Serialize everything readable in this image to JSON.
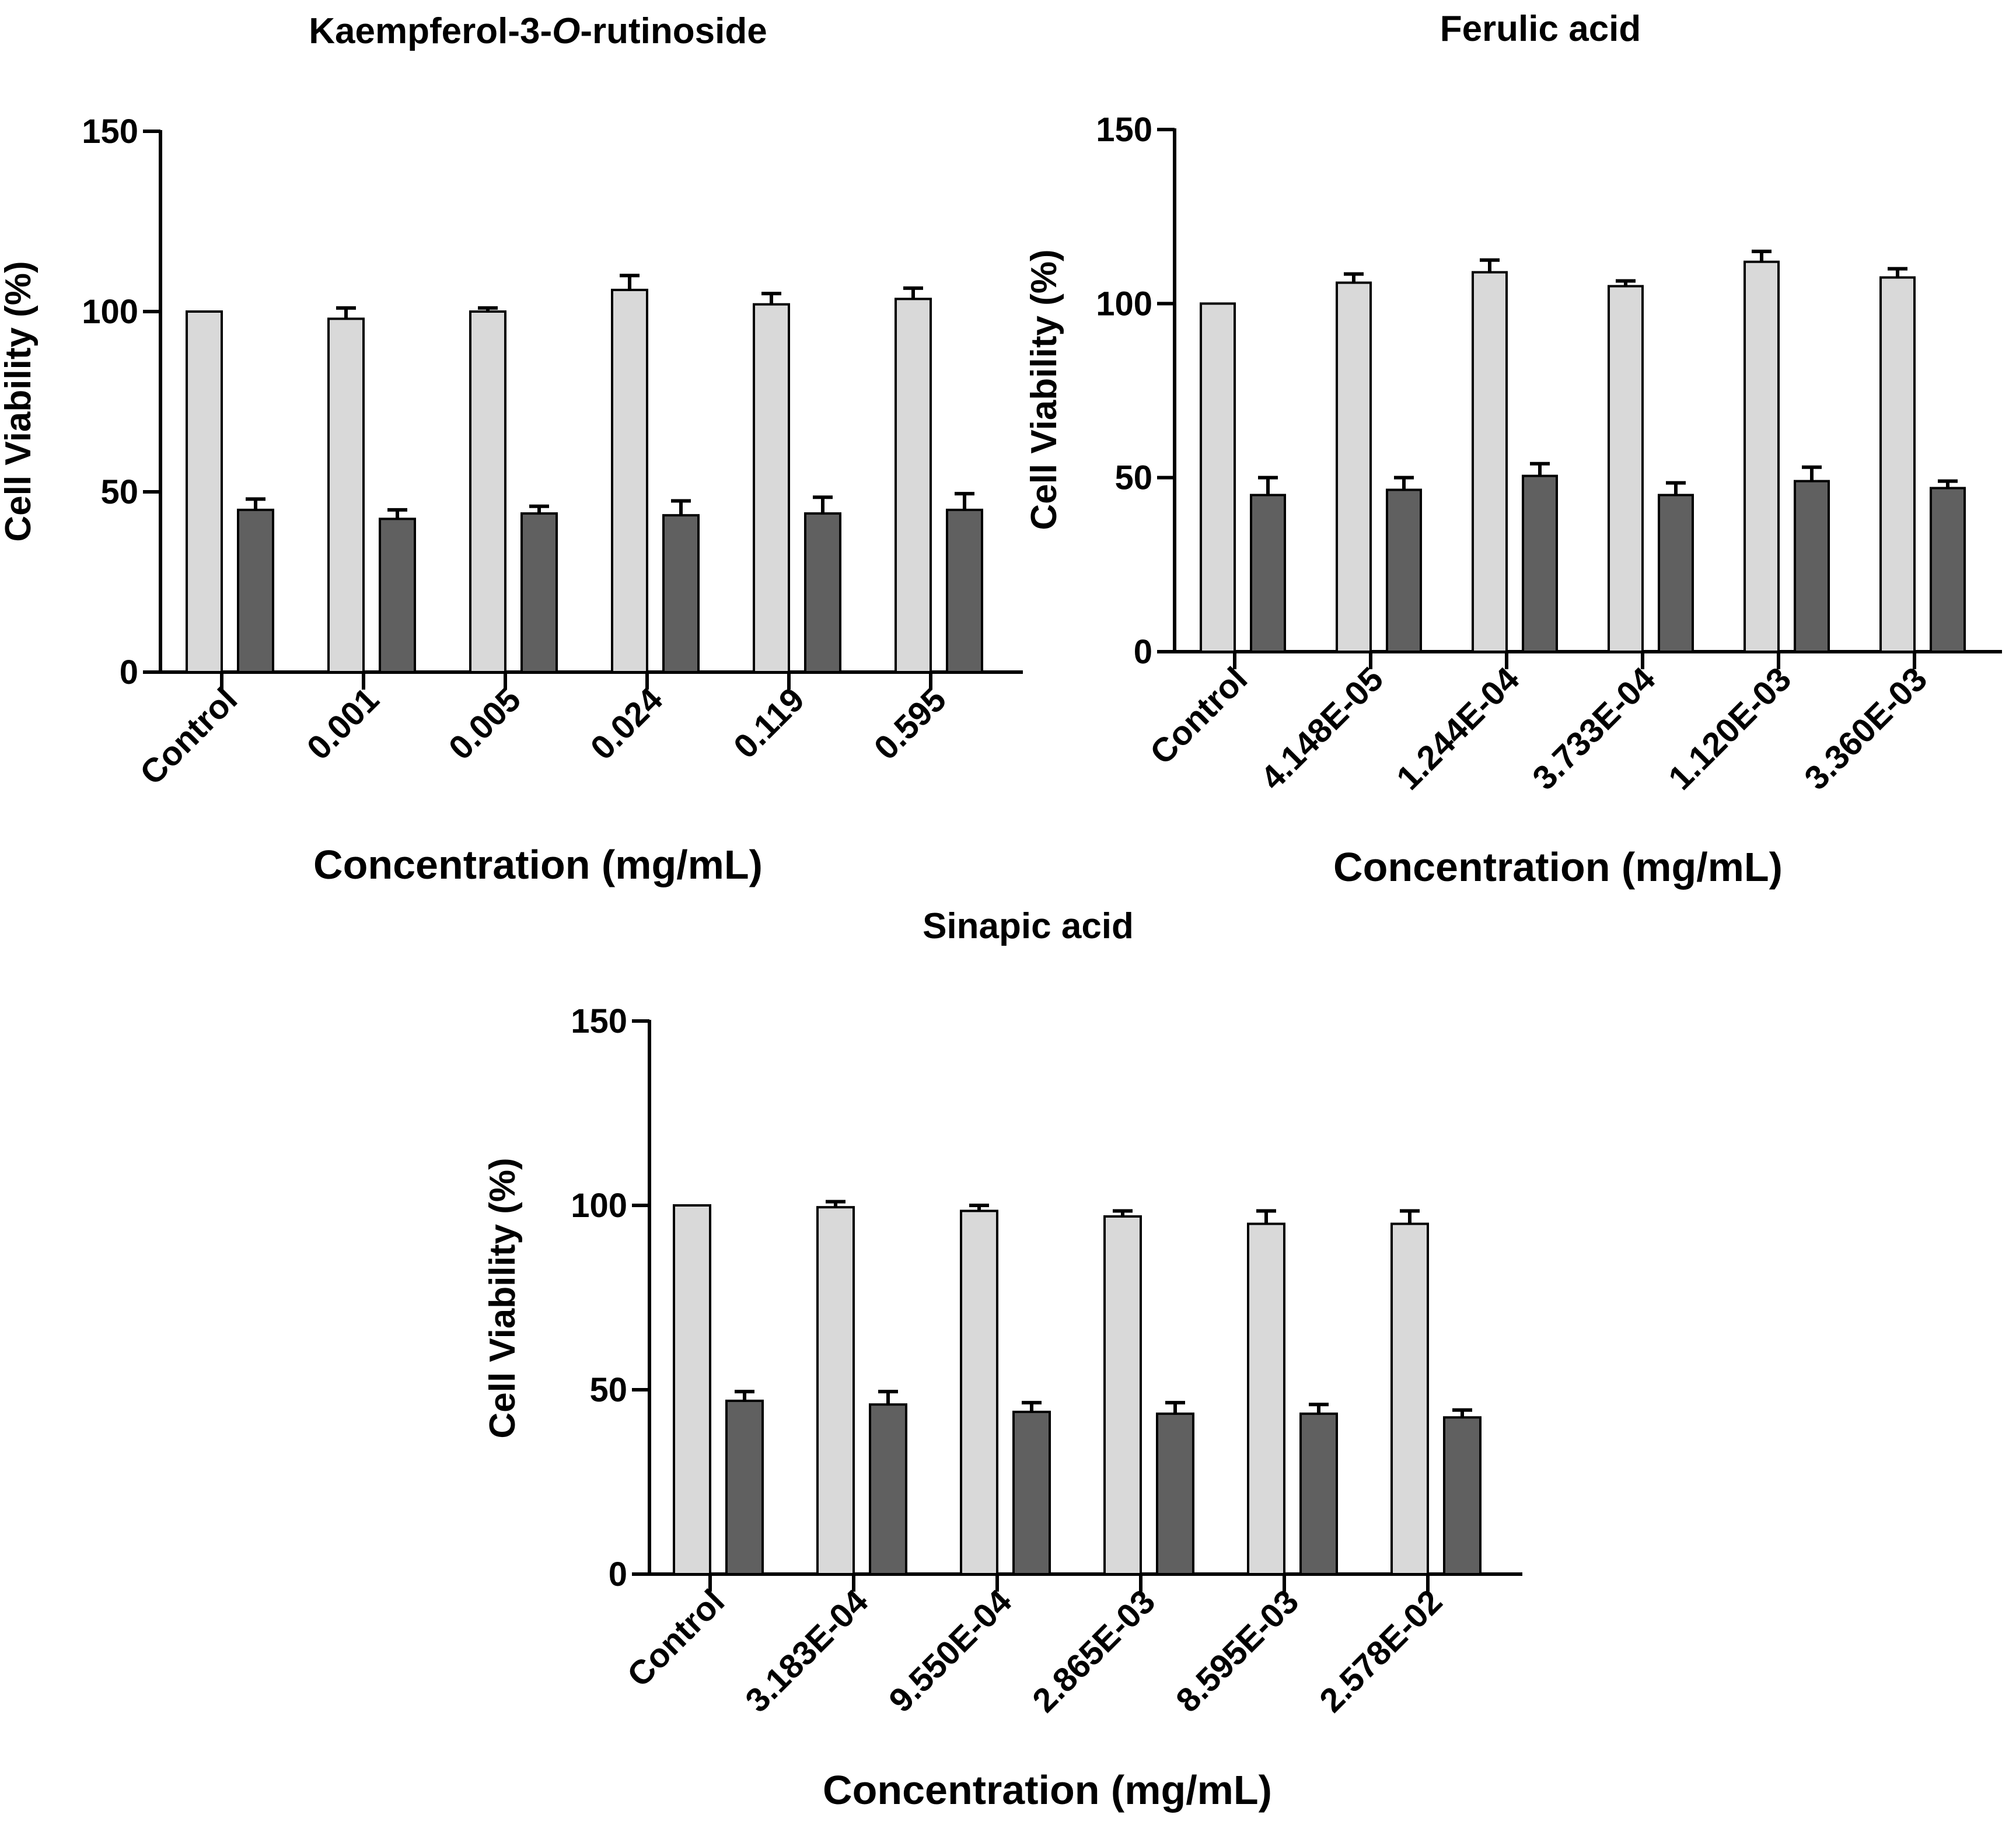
{
  "chart_data": [
    {
      "type": "bar",
      "title_parts": [
        "Kaempferol-3-",
        "O",
        "-rutinoside"
      ],
      "xlabel": "Concentration (mg/mL)",
      "ylabel": "Cell Viability (%)",
      "ylim": [
        0,
        150
      ],
      "yticks": [
        0,
        50,
        100,
        150
      ],
      "categories": [
        "Control",
        "0.001",
        "0.005",
        "0.024",
        "0.119",
        "0.595"
      ],
      "series": [
        {
          "name": "light",
          "color": "#d9d9d9",
          "values": [
            100,
            98,
            100,
            106,
            102,
            103.5
          ],
          "errors": [
            0,
            3,
            1,
            4,
            3,
            3
          ]
        },
        {
          "name": "dark",
          "color": "#606060",
          "values": [
            45,
            42.5,
            44,
            43.5,
            44,
            45
          ],
          "errors": [
            3,
            2.5,
            2,
            4,
            4.5,
            4.5
          ]
        }
      ]
    },
    {
      "type": "bar",
      "title_parts": [
        "Ferulic acid"
      ],
      "xlabel": "Concentration (mg/mL)",
      "ylabel": "Cell Viability (%)",
      "ylim": [
        0,
        150
      ],
      "yticks": [
        0,
        50,
        100,
        150
      ],
      "categories": [
        "Control",
        "4.148E-05",
        "1.244E-04",
        "3.733E-04",
        "1.120E-03",
        "3.360E-03"
      ],
      "series": [
        {
          "name": "light",
          "color": "#d9d9d9",
          "values": [
            100,
            106,
            109,
            105,
            112,
            107.5
          ],
          "errors": [
            0,
            2.5,
            3.5,
            1.5,
            3,
            2.5
          ]
        },
        {
          "name": "dark",
          "color": "#606060",
          "values": [
            45,
            46.5,
            50.5,
            45,
            49,
            47
          ],
          "errors": [
            5,
            3.5,
            3.5,
            3.5,
            4,
            2
          ]
        }
      ]
    },
    {
      "type": "bar",
      "title_parts": [
        "Sinapic acid"
      ],
      "xlabel": "Concentration (mg/mL)",
      "ylabel": "Cell Viability (%)",
      "ylim": [
        0,
        150
      ],
      "yticks": [
        0,
        50,
        100,
        150
      ],
      "categories": [
        "Control",
        "3.183E-04",
        "9.550E-04",
        "2.865E-03",
        "8.595E-03",
        "2.578E-02"
      ],
      "series": [
        {
          "name": "light",
          "color": "#d9d9d9",
          "values": [
            100,
            99.5,
            98.5,
            97,
            95,
            95
          ],
          "errors": [
            0,
            1.5,
            1.5,
            1.5,
            3.5,
            3.5
          ]
        },
        {
          "name": "dark",
          "color": "#606060",
          "values": [
            47,
            46,
            44,
            43.5,
            43.5,
            42.5
          ],
          "errors": [
            2.5,
            3.5,
            2.5,
            3,
            2.5,
            2
          ]
        }
      ]
    }
  ]
}
